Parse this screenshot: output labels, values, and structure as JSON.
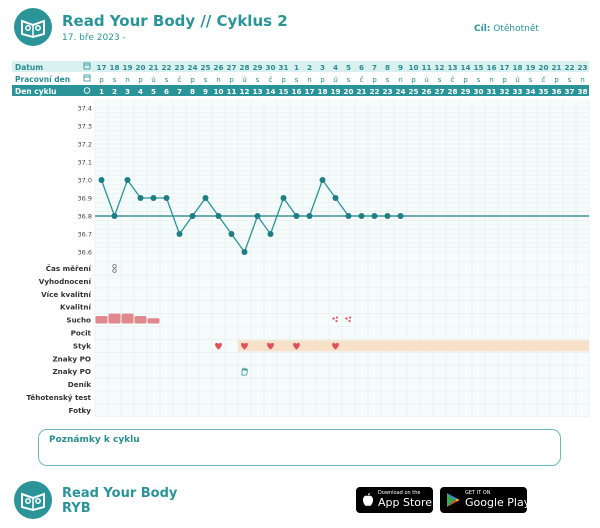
{
  "header": {
    "title": "Read Your Body // Cyklus 2",
    "subtitle": "17. bře 2023 -",
    "goal_label": "Cíl:",
    "goal_value": "Otěhotnět"
  },
  "rows": {
    "datum_label": "Datum",
    "pracovni_label": "Pracovní den",
    "den_cyklu_label": "Den cyklu"
  },
  "dates": [
    "17",
    "18",
    "19",
    "20",
    "21",
    "22",
    "23",
    "24",
    "25",
    "26",
    "27",
    "28",
    "29",
    "30",
    "31",
    "1",
    "2",
    "3",
    "4",
    "5",
    "6",
    "7",
    "8",
    "9",
    "10",
    "11",
    "12",
    "13",
    "14",
    "15",
    "16",
    "17",
    "18",
    "19",
    "20",
    "21",
    "22",
    "23"
  ],
  "weekdays": [
    "p",
    "s",
    "n",
    "p",
    "ú",
    "s",
    "č",
    "p",
    "s",
    "n",
    "p",
    "ú",
    "s",
    "č",
    "p",
    "s",
    "n",
    "p",
    "ú",
    "s",
    "č",
    "p",
    "s",
    "n",
    "p",
    "ú",
    "s",
    "č",
    "p",
    "s",
    "n",
    "p",
    "ú",
    "s",
    "č",
    "p",
    "s",
    "n"
  ],
  "cycle_days": [
    "1",
    "2",
    "3",
    "4",
    "5",
    "6",
    "7",
    "8",
    "9",
    "10",
    "11",
    "12",
    "13",
    "14",
    "15",
    "16",
    "17",
    "18",
    "19",
    "20",
    "21",
    "22",
    "23",
    "24",
    "25",
    "26",
    "27",
    "28",
    "29",
    "30",
    "31",
    "32",
    "33",
    "34",
    "35",
    "36",
    "37",
    "38"
  ],
  "chart_data": {
    "type": "line",
    "title": "",
    "xlabel": "",
    "ylabel": "",
    "y_ticks": [
      "37.4",
      "37.3",
      "37.2",
      "37.1",
      "37.0",
      "36.9",
      "36.8",
      "36.7",
      "36.6"
    ],
    "ylim": [
      36.55,
      37.45
    ],
    "coverline": 36.8,
    "x": [
      1,
      2,
      3,
      4,
      5,
      6,
      7,
      8,
      9,
      10,
      11,
      12,
      13,
      14,
      15,
      16,
      17,
      18,
      19,
      20,
      21,
      22,
      23,
      24
    ],
    "values": [
      37.0,
      36.8,
      37.0,
      36.9,
      36.9,
      36.9,
      36.7,
      36.8,
      36.9,
      36.8,
      36.7,
      36.6,
      36.8,
      36.7,
      36.9,
      36.8,
      36.8,
      37.0,
      36.9,
      36.8,
      36.8,
      36.8,
      36.8,
      36.8
    ]
  },
  "categories": [
    "Čas měření",
    "Vyhodnocení",
    "Více kvalitní",
    "Kvalitní",
    "Sucho",
    "Pocit",
    "Styk",
    "Znaky PO",
    "Znaky PO",
    "Deník",
    "Těhotenský test",
    "Fotky"
  ],
  "bleeding": {
    "days": [
      1,
      2,
      3,
      4,
      5
    ],
    "intensity": [
      2,
      3,
      3,
      2,
      1
    ]
  },
  "spotting_days": [
    19,
    20
  ],
  "intercourse_days": [
    10,
    12,
    14,
    16,
    19
  ],
  "styk_band_from_day": 12,
  "measure_time_day": 2,
  "hand_day": 12,
  "notes": {
    "label": "Poznámky k cyklu"
  },
  "footer": {
    "brand": "Read Your Body",
    "brand_short": "RYB",
    "appstore_small": "Download on the",
    "appstore_big": "App Store",
    "play_small": "GET IT ON",
    "play_big": "Google Play"
  },
  "colors": {
    "teal": "#2a9499",
    "dark_teal": "#1f7e83",
    "header_row": "#d8f0ee",
    "bleeding": "#e0888e",
    "heart": "#e2515a",
    "band": "#f7e2c9"
  }
}
